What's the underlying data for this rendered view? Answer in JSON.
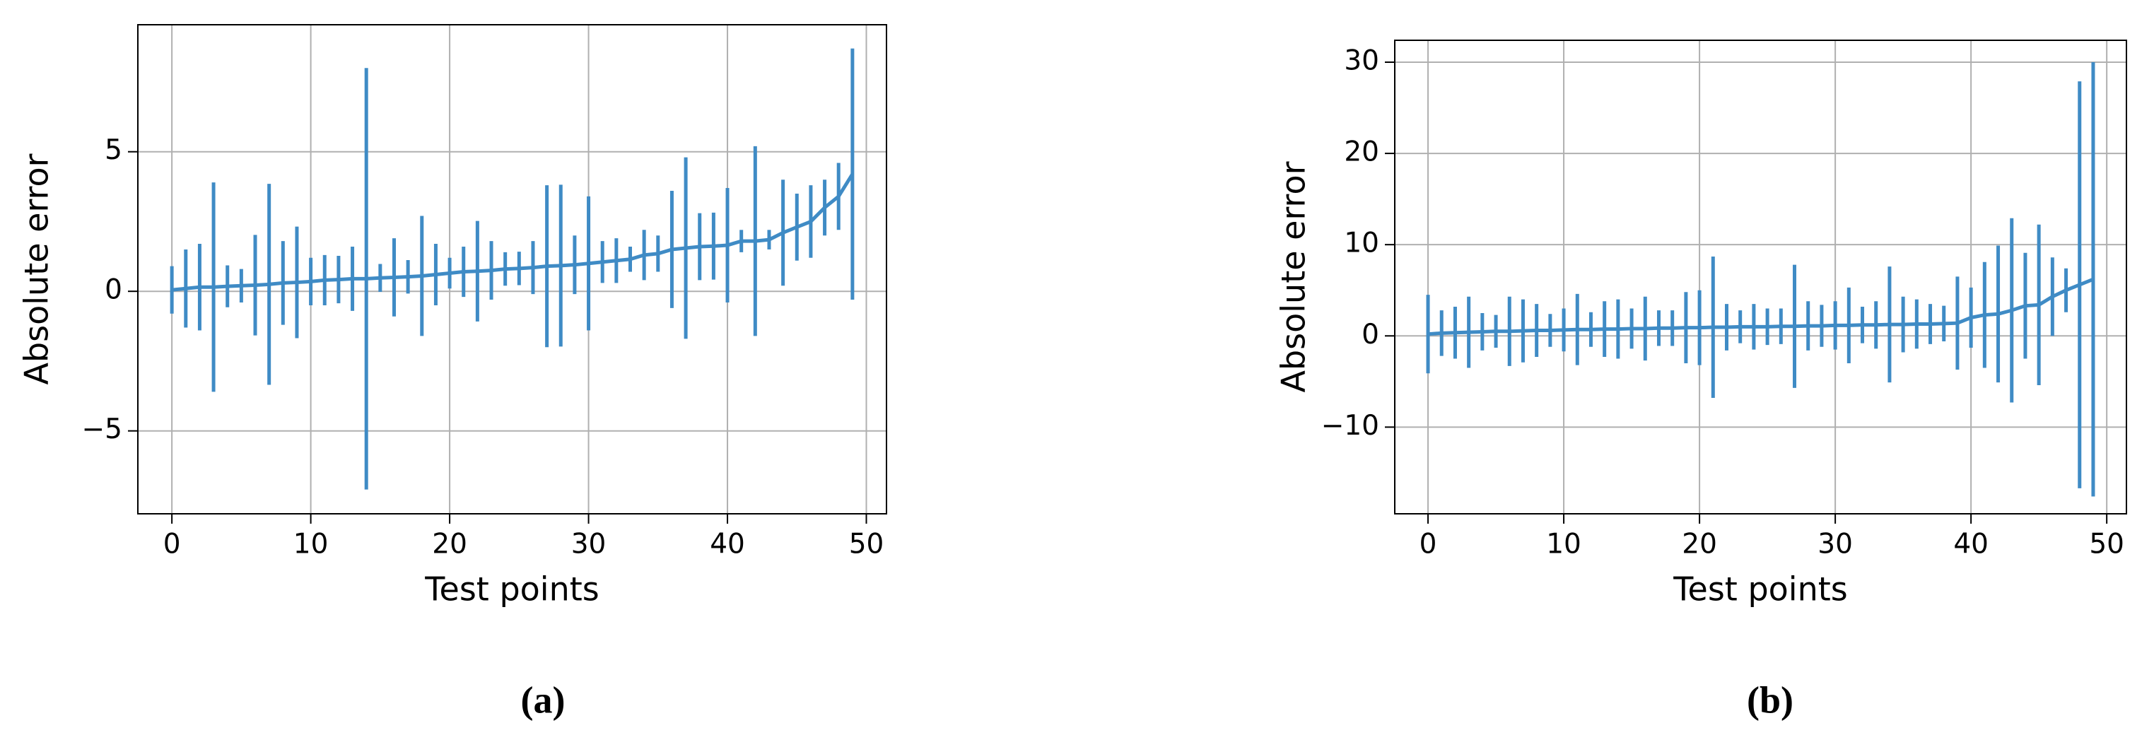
{
  "chart_data": [
    {
      "type": "errorbar",
      "caption": "(a)",
      "xlabel": "Test points",
      "ylabel": "Absolute error",
      "color": "#3f8bc5",
      "grid": true,
      "x": [
        0,
        1,
        2,
        3,
        4,
        5,
        6,
        7,
        8,
        9,
        10,
        11,
        12,
        13,
        14,
        15,
        16,
        17,
        18,
        19,
        20,
        21,
        22,
        23,
        24,
        25,
        26,
        27,
        28,
        29,
        30,
        31,
        32,
        33,
        34,
        35,
        36,
        37,
        38,
        39,
        40,
        41,
        42,
        43,
        44,
        45,
        46,
        47,
        48,
        49
      ],
      "values": [
        0.05,
        0.1,
        0.15,
        0.15,
        0.18,
        0.2,
        0.22,
        0.25,
        0.3,
        0.32,
        0.35,
        0.4,
        0.42,
        0.45,
        0.45,
        0.48,
        0.5,
        0.52,
        0.55,
        0.6,
        0.65,
        0.7,
        0.72,
        0.75,
        0.8,
        0.82,
        0.85,
        0.9,
        0.92,
        0.95,
        1.0,
        1.05,
        1.1,
        1.15,
        1.3,
        1.35,
        1.5,
        1.55,
        1.6,
        1.62,
        1.65,
        1.8,
        1.8,
        1.85,
        2.1,
        2.3,
        2.5,
        3.0,
        3.4,
        4.2
      ],
      "errors": [
        0.85,
        1.4,
        1.55,
        3.75,
        0.75,
        0.6,
        1.8,
        3.6,
        1.5,
        2.0,
        0.85,
        0.9,
        0.85,
        1.15,
        7.55,
        0.5,
        1.4,
        0.6,
        2.15,
        1.1,
        0.55,
        0.9,
        1.8,
        1.05,
        0.6,
        0.6,
        0.95,
        2.9,
        2.9,
        1.05,
        2.4,
        0.75,
        0.8,
        0.45,
        0.9,
        0.65,
        2.1,
        3.25,
        1.2,
        1.2,
        2.05,
        0.4,
        3.4,
        0.35,
        1.9,
        1.2,
        1.3,
        1.0,
        1.2,
        4.5
      ],
      "xlim": [
        -2.45,
        51.45
      ],
      "ylim": [
        -7.97,
        9.55
      ],
      "xticks": [
        0,
        10,
        20,
        30,
        40,
        50
      ],
      "yticks": [
        {
          "value": -5,
          "label": "−5"
        },
        0,
        5
      ]
    },
    {
      "type": "errorbar",
      "caption": "(b)",
      "xlabel": "Test points",
      "ylabel": "Absolute error",
      "color": "#3f8bc5",
      "grid": true,
      "x": [
        0,
        1,
        2,
        3,
        4,
        5,
        6,
        7,
        8,
        9,
        10,
        11,
        12,
        13,
        14,
        15,
        16,
        17,
        18,
        19,
        20,
        21,
        22,
        23,
        24,
        25,
        26,
        27,
        28,
        29,
        30,
        31,
        32,
        33,
        34,
        35,
        36,
        37,
        38,
        39,
        40,
        41,
        42,
        43,
        44,
        45,
        46,
        47,
        48,
        49
      ],
      "values": [
        0.2,
        0.3,
        0.35,
        0.4,
        0.45,
        0.5,
        0.5,
        0.55,
        0.6,
        0.6,
        0.65,
        0.7,
        0.7,
        0.75,
        0.75,
        0.8,
        0.8,
        0.85,
        0.85,
        0.9,
        0.9,
        0.95,
        0.95,
        1.0,
        1.0,
        1.0,
        1.05,
        1.05,
        1.1,
        1.1,
        1.15,
        1.15,
        1.2,
        1.2,
        1.25,
        1.25,
        1.3,
        1.3,
        1.35,
        1.4,
        2.0,
        2.3,
        2.4,
        2.8,
        3.3,
        3.4,
        4.3,
        5.0,
        5.6,
        6.2
      ],
      "errors": [
        4.3,
        2.5,
        2.85,
        3.9,
        2.05,
        1.8,
        3.8,
        3.45,
        2.9,
        1.8,
        2.35,
        3.9,
        1.9,
        3.05,
        3.25,
        2.2,
        3.5,
        1.95,
        1.95,
        3.9,
        4.1,
        7.75,
        2.55,
        1.8,
        2.5,
        2.0,
        1.95,
        6.75,
        2.7,
        2.3,
        2.65,
        4.15,
        2.0,
        2.6,
        6.35,
        3.05,
        2.7,
        2.2,
        1.95,
        5.1,
        3.3,
        5.8,
        7.5,
        10.1,
        5.8,
        8.8,
        4.3,
        2.4,
        22.3,
        23.8
      ],
      "xlim": [
        -2.45,
        51.45
      ],
      "ylim": [
        -19.5,
        32.4
      ],
      "xticks": [
        0,
        10,
        20,
        30,
        40,
        50
      ],
      "yticks": [
        {
          "value": -10,
          "label": "−10"
        },
        0,
        10,
        20,
        30
      ]
    }
  ]
}
